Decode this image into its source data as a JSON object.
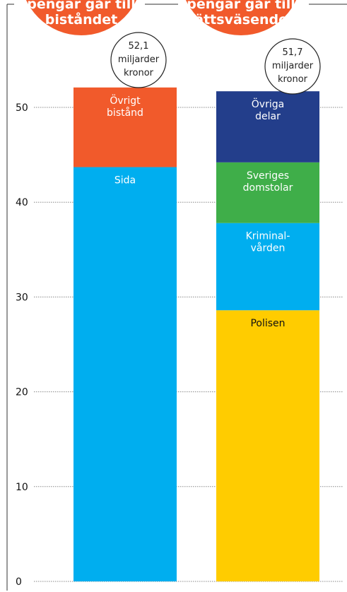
{
  "chart_data": {
    "type": "bar",
    "stacked": true,
    "ylim": [
      0,
      50
    ],
    "yticks": [
      0,
      10,
      20,
      30,
      40,
      50
    ],
    "grid": true,
    "bars": [
      {
        "title_lines": [
          "pengar går till",
          "biståndet"
        ],
        "total_lines": [
          "52,1",
          "miljarder",
          "kronor"
        ],
        "total": 52.1,
        "segments": [
          {
            "label_lines": [
              "Sida"
            ],
            "value": 43.7,
            "color": "#00aeef",
            "text_color": "#ffffff"
          },
          {
            "label_lines": [
              "Övrigt",
              "bistånd"
            ],
            "value": 8.4,
            "color": "#f15a2b",
            "text_color": "#ffffff"
          }
        ]
      },
      {
        "title_lines": [
          "pengar går till",
          "rättsväsendet"
        ],
        "total_lines": [
          "51,7",
          "miljarder",
          "kronor"
        ],
        "total": 51.7,
        "segments": [
          {
            "label_lines": [
              "Polisen"
            ],
            "value": 28.6,
            "color": "#ffcc00",
            "text_color": "#111111"
          },
          {
            "label_lines": [
              "Kriminal-",
              "vården"
            ],
            "value": 9.2,
            "color": "#00aeef",
            "text_color": "#ffffff"
          },
          {
            "label_lines": [
              "Sveriges",
              "domstolar"
            ],
            "value": 6.4,
            "color": "#3fae49",
            "text_color": "#ffffff"
          },
          {
            "label_lines": [
              "Övriga",
              "delar"
            ],
            "value": 7.5,
            "color": "#233e8b",
            "text_color": "#ffffff"
          }
        ]
      }
    ],
    "title_badge_color": "#f15a2b"
  }
}
